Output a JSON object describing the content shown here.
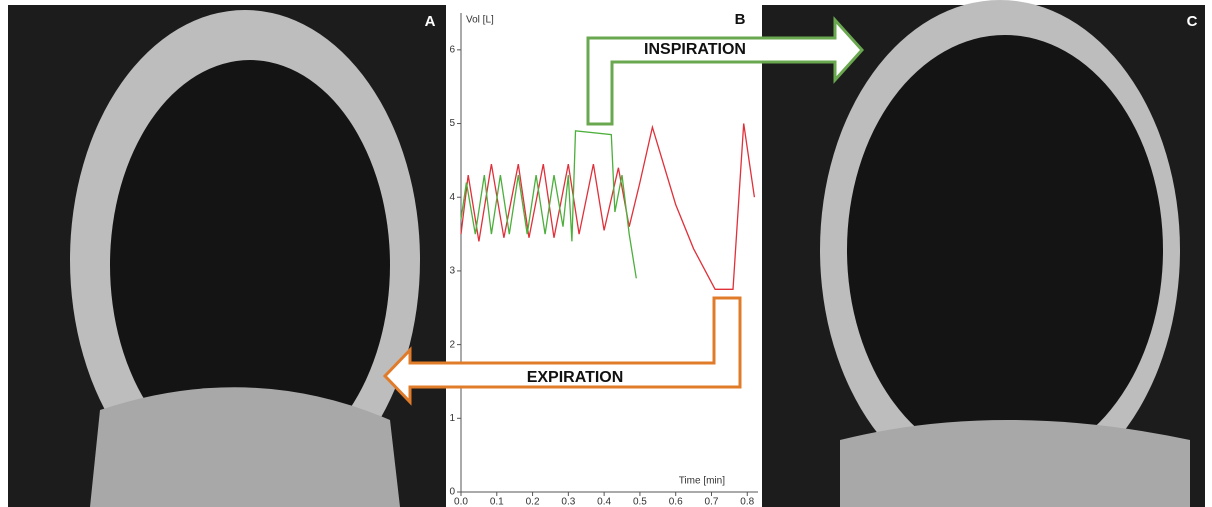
{
  "chart_data": {
    "type": "line",
    "panel_a": "A",
    "panel_b": "B",
    "panel_c": "C",
    "ylabel": "Vol [L]",
    "xlabel": "Time [min]",
    "inspiration": "INSPIRATION",
    "expiration": "EXPIRATION",
    "xlim": [
      0,
      0.83
    ],
    "ylim": [
      0,
      6.5
    ],
    "xticks": [
      {
        "value": 0,
        "label": "0.0"
      },
      0.1,
      0.2,
      0.3,
      0.4,
      0.5,
      0.6,
      0.7,
      0.8
    ],
    "yticks": [
      0,
      1,
      2,
      3,
      4,
      5,
      6
    ],
    "series": [
      {
        "color": "#e0303a",
        "x": [
          0,
          0.02,
          0.05,
          0.085,
          0.12,
          0.16,
          0.19,
          0.23,
          0.26,
          0.3,
          0.33,
          0.37,
          0.4,
          0.44,
          0.47,
          0.5,
          0.535,
          0.6,
          0.65,
          0.71,
          0.76,
          0.79,
          0.82
        ],
        "values": [
          3.5,
          4.3,
          3.4,
          4.45,
          3.45,
          4.45,
          3.45,
          4.45,
          3.45,
          4.45,
          3.5,
          4.45,
          3.55,
          4.4,
          3.6,
          4.2,
          4.95,
          3.9,
          3.3,
          2.75,
          2.75,
          5.0,
          4.0
        ]
      },
      {
        "color": "#4caf3c",
        "x": [
          0,
          0.015,
          0.04,
          0.065,
          0.085,
          0.11,
          0.135,
          0.16,
          0.185,
          0.21,
          0.235,
          0.26,
          0.285,
          0.3,
          0.31,
          0.32,
          0.42,
          0.43,
          0.45,
          0.47,
          0.49
        ],
        "values": [
          3.7,
          4.2,
          3.5,
          4.3,
          3.5,
          4.3,
          3.5,
          4.3,
          3.5,
          4.3,
          3.5,
          4.3,
          3.6,
          4.3,
          3.4,
          4.9,
          4.85,
          3.8,
          4.3,
          3.5,
          2.9
        ]
      }
    ]
  }
}
